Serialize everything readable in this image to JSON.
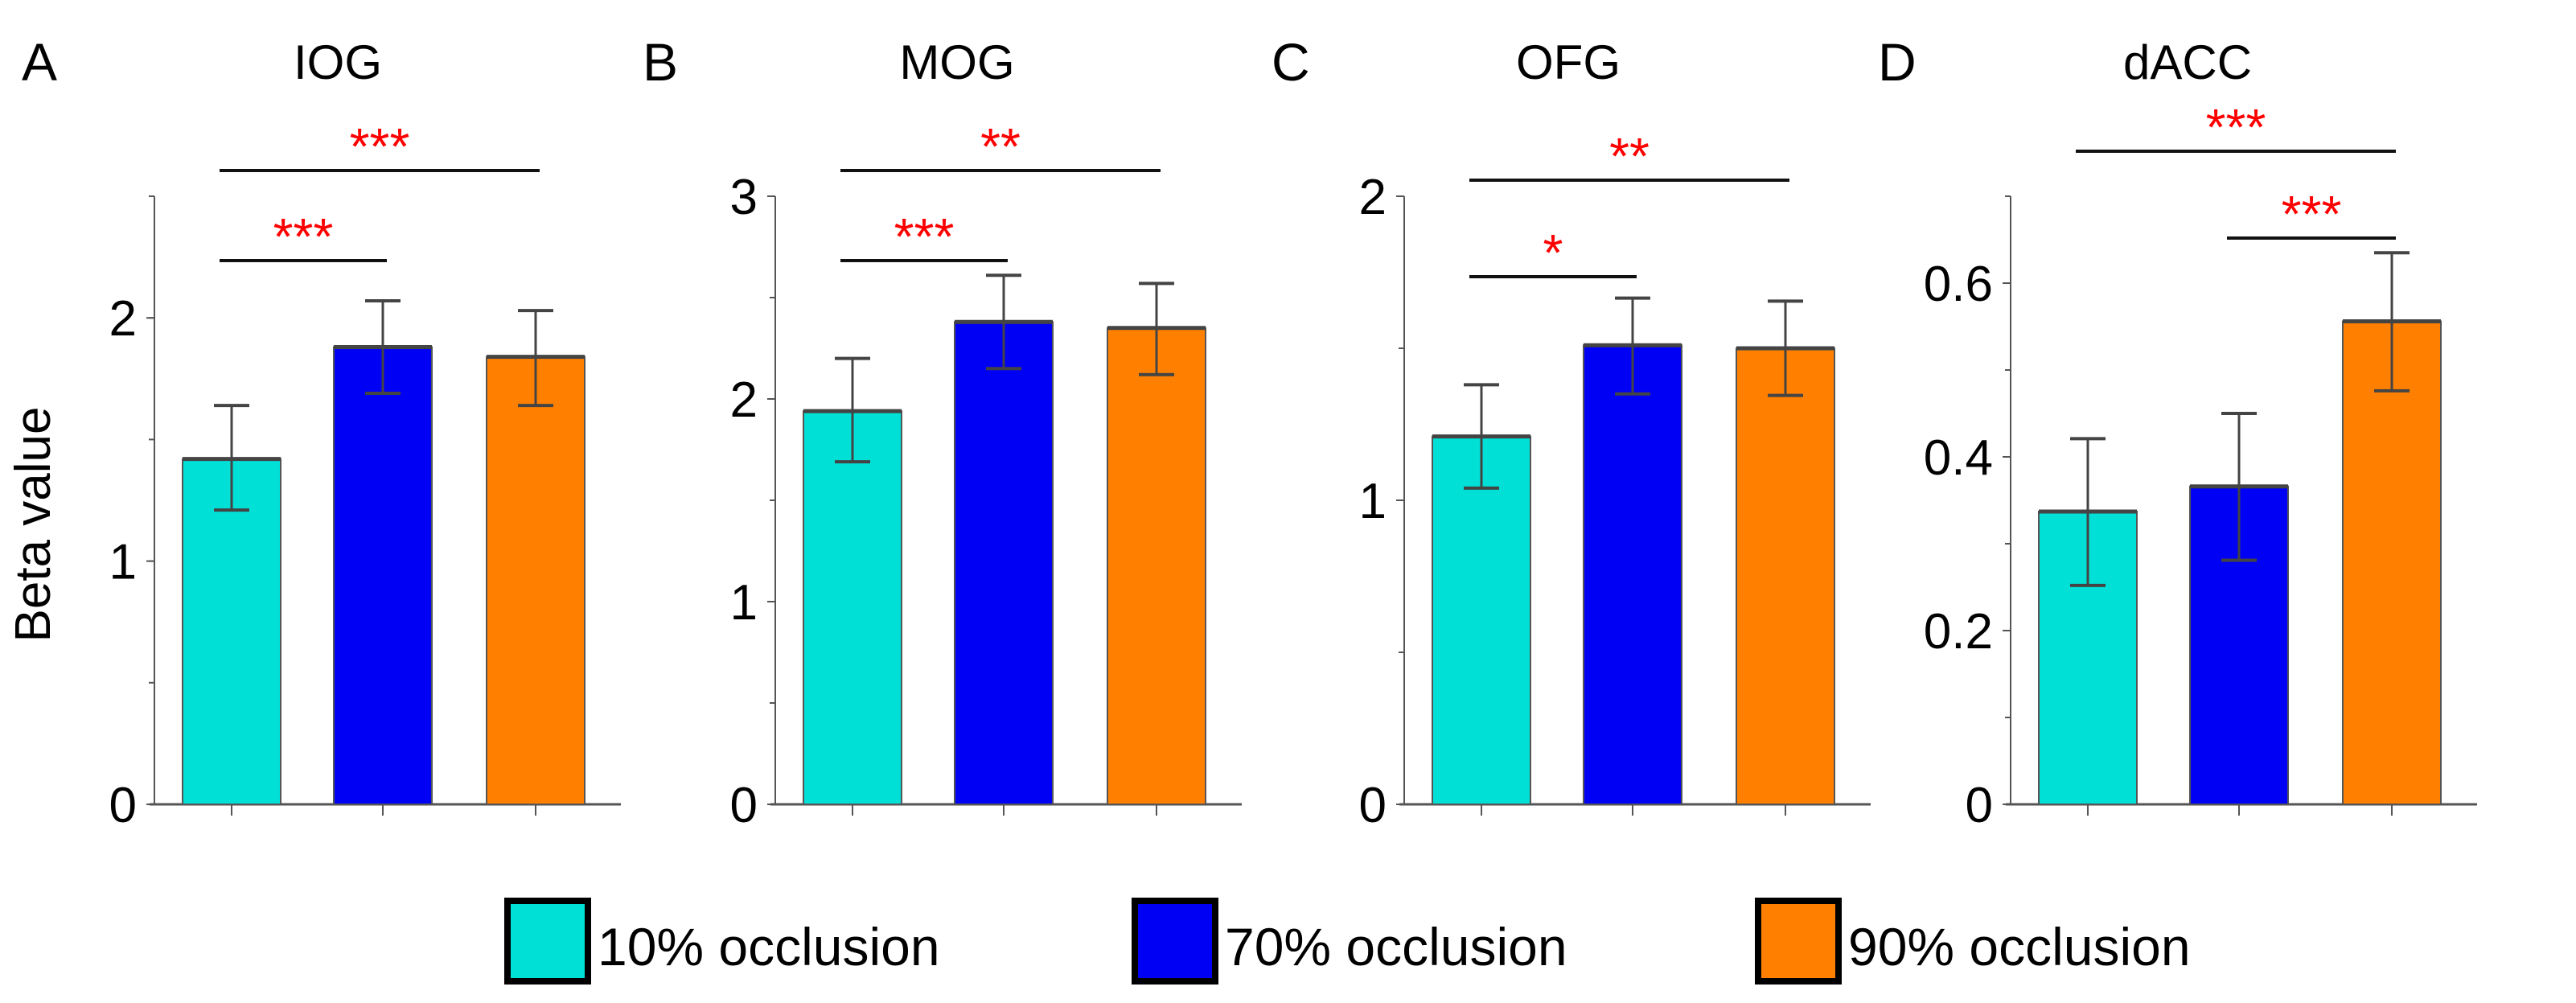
{
  "chart_data": [
    {
      "type": "bar",
      "panel_label": "A",
      "title": "IOG",
      "ylabel": "Beta value",
      "ylim": [
        0,
        2.5
      ],
      "yticks": [
        0,
        1,
        2
      ],
      "minor_tick_step": 0.5,
      "categories": [
        "10% occlusion",
        "70% occlusion",
        "90% occlusion"
      ],
      "values": [
        1.42,
        1.88,
        1.84
      ],
      "error_low": [
        1.21,
        1.69,
        1.64
      ],
      "error_high": [
        1.64,
        2.07,
        2.03
      ],
      "significance": [
        {
          "from": 0,
          "to": 1,
          "label": "***",
          "level": 1
        },
        {
          "from": 0,
          "to": 2,
          "label": "***",
          "level": 2
        }
      ]
    },
    {
      "type": "bar",
      "panel_label": "B",
      "title": "MOG",
      "ylabel": "",
      "ylim": [
        0,
        3
      ],
      "yticks": [
        0,
        1,
        2,
        3
      ],
      "minor_tick_step": 0.5,
      "categories": [
        "10% occlusion",
        "70% occlusion",
        "90% occlusion"
      ],
      "values": [
        1.94,
        2.38,
        2.35
      ],
      "error_low": [
        1.69,
        2.15,
        2.12
      ],
      "error_high": [
        2.2,
        2.61,
        2.57
      ],
      "significance": [
        {
          "from": 0,
          "to": 1,
          "label": "***",
          "level": 1
        },
        {
          "from": 0,
          "to": 2,
          "label": "**",
          "level": 2
        }
      ]
    },
    {
      "type": "bar",
      "panel_label": "C",
      "title": "OFG",
      "ylabel": "",
      "ylim": [
        0,
        2
      ],
      "yticks": [
        0,
        1,
        2
      ],
      "minor_tick_step": 0.5,
      "categories": [
        "10% occlusion",
        "70% occlusion",
        "90% occlusion"
      ],
      "values": [
        1.21,
        1.51,
        1.5
      ],
      "error_low": [
        1.04,
        1.35,
        1.345
      ],
      "error_high": [
        1.38,
        1.665,
        1.655
      ],
      "significance": [
        {
          "from": 0,
          "to": 1,
          "label": "*",
          "level": 1
        },
        {
          "from": 0,
          "to": 2,
          "label": "**",
          "level": 2
        }
      ]
    },
    {
      "type": "bar",
      "panel_label": "D",
      "title": "dACC",
      "ylabel": "",
      "ylim": [
        0,
        0.7
      ],
      "yticks": [
        0,
        0.2,
        0.4,
        0.6
      ],
      "minor_tick_step": 0.1,
      "categories": [
        "10% occlusion",
        "70% occlusion",
        "90% occlusion"
      ],
      "values": [
        0.337,
        0.366,
        0.556
      ],
      "error_low": [
        0.252,
        0.281,
        0.476
      ],
      "error_high": [
        0.421,
        0.45,
        0.635
      ],
      "significance": [
        {
          "from": 1,
          "to": 2,
          "label": "***",
          "level": 1
        },
        {
          "from": 0,
          "to": 2,
          "label": "***",
          "level": 2
        }
      ]
    }
  ],
  "legend": {
    "placement": "bottom",
    "items": [
      {
        "label": "10% occlusion",
        "color": "#00E0D6"
      },
      {
        "label": "70% occlusion",
        "color": "#0000F5"
      },
      {
        "label": "90% occlusion",
        "color": "#FF8000"
      }
    ]
  },
  "colors": {
    "bars": [
      "#00E0D6",
      "#0000F5",
      "#FF8000"
    ],
    "significance": "#FF0000",
    "axis": "#555555"
  }
}
